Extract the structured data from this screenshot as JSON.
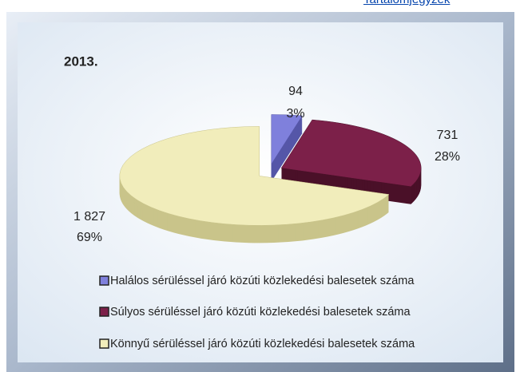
{
  "link": "Tartalomjegyzék",
  "chart_data": {
    "type": "pie",
    "title": "2013.",
    "categories": [
      "Halálos sérüléssel járó közúti közlekedési balesetek száma",
      "Súlyos sérüléssel járó közúti közlekedési balesetek száma",
      "Könnyű sérüléssel járó közúti közlekedési balesetek száma"
    ],
    "values": [
      94,
      731,
      1827
    ],
    "value_labels": [
      "94",
      "731",
      "1 827"
    ],
    "percents": [
      3,
      28,
      69
    ],
    "percent_labels": [
      "3%",
      "28%",
      "69%"
    ],
    "colors": [
      "#7f80dc",
      "#7c2049",
      "#f1edbb"
    ],
    "side_colors": [
      "#5556a8",
      "#4a1028",
      "#c9c48a"
    ]
  }
}
